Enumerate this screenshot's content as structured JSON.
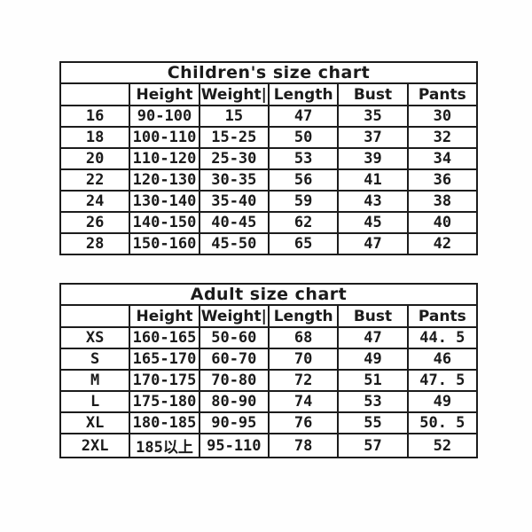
{
  "page": {
    "background_color": "#ffffff",
    "text_color": "#1b1b1b",
    "border_color": "#1c1c1c"
  },
  "chart_data": [
    {
      "type": "table",
      "title": "Children's size chart",
      "columns": [
        "",
        "Height",
        "Weight|",
        "Length",
        "Bust",
        "Pants"
      ],
      "rows": [
        [
          "16",
          "90-100",
          "15",
          "47",
          "35",
          "30"
        ],
        [
          "18",
          "100-110",
          "15-25",
          "50",
          "37",
          "32"
        ],
        [
          "20",
          "110-120",
          "25-30",
          "53",
          "39",
          "34"
        ],
        [
          "22",
          "120-130",
          "30-35",
          "56",
          "41",
          "36"
        ],
        [
          "24",
          "130-140",
          "35-40",
          "59",
          "43",
          "38"
        ],
        [
          "26",
          "140-150",
          "40-45",
          "62",
          "45",
          "40"
        ],
        [
          "28",
          "150-160",
          "45-50",
          "65",
          "47",
          "42"
        ]
      ]
    },
    {
      "type": "table",
      "title": "Adult size chart",
      "columns": [
        "",
        "Height",
        "Weight|",
        "Length",
        "Bust",
        "Pants"
      ],
      "rows": [
        [
          "XS",
          "160-165",
          "50-60",
          "68",
          "47",
          "44. 5"
        ],
        [
          "S",
          "165-170",
          "60-70",
          "70",
          "49",
          "46"
        ],
        [
          "M",
          "170-175",
          "70-80",
          "72",
          "51",
          "47. 5"
        ],
        [
          "L",
          "175-180",
          "80-90",
          "74",
          "53",
          "49"
        ],
        [
          "XL",
          "180-185",
          "90-95",
          "76",
          "55",
          "50. 5"
        ],
        [
          "2XL",
          "185以上",
          "95-110",
          "78",
          "57",
          "52"
        ]
      ]
    }
  ]
}
